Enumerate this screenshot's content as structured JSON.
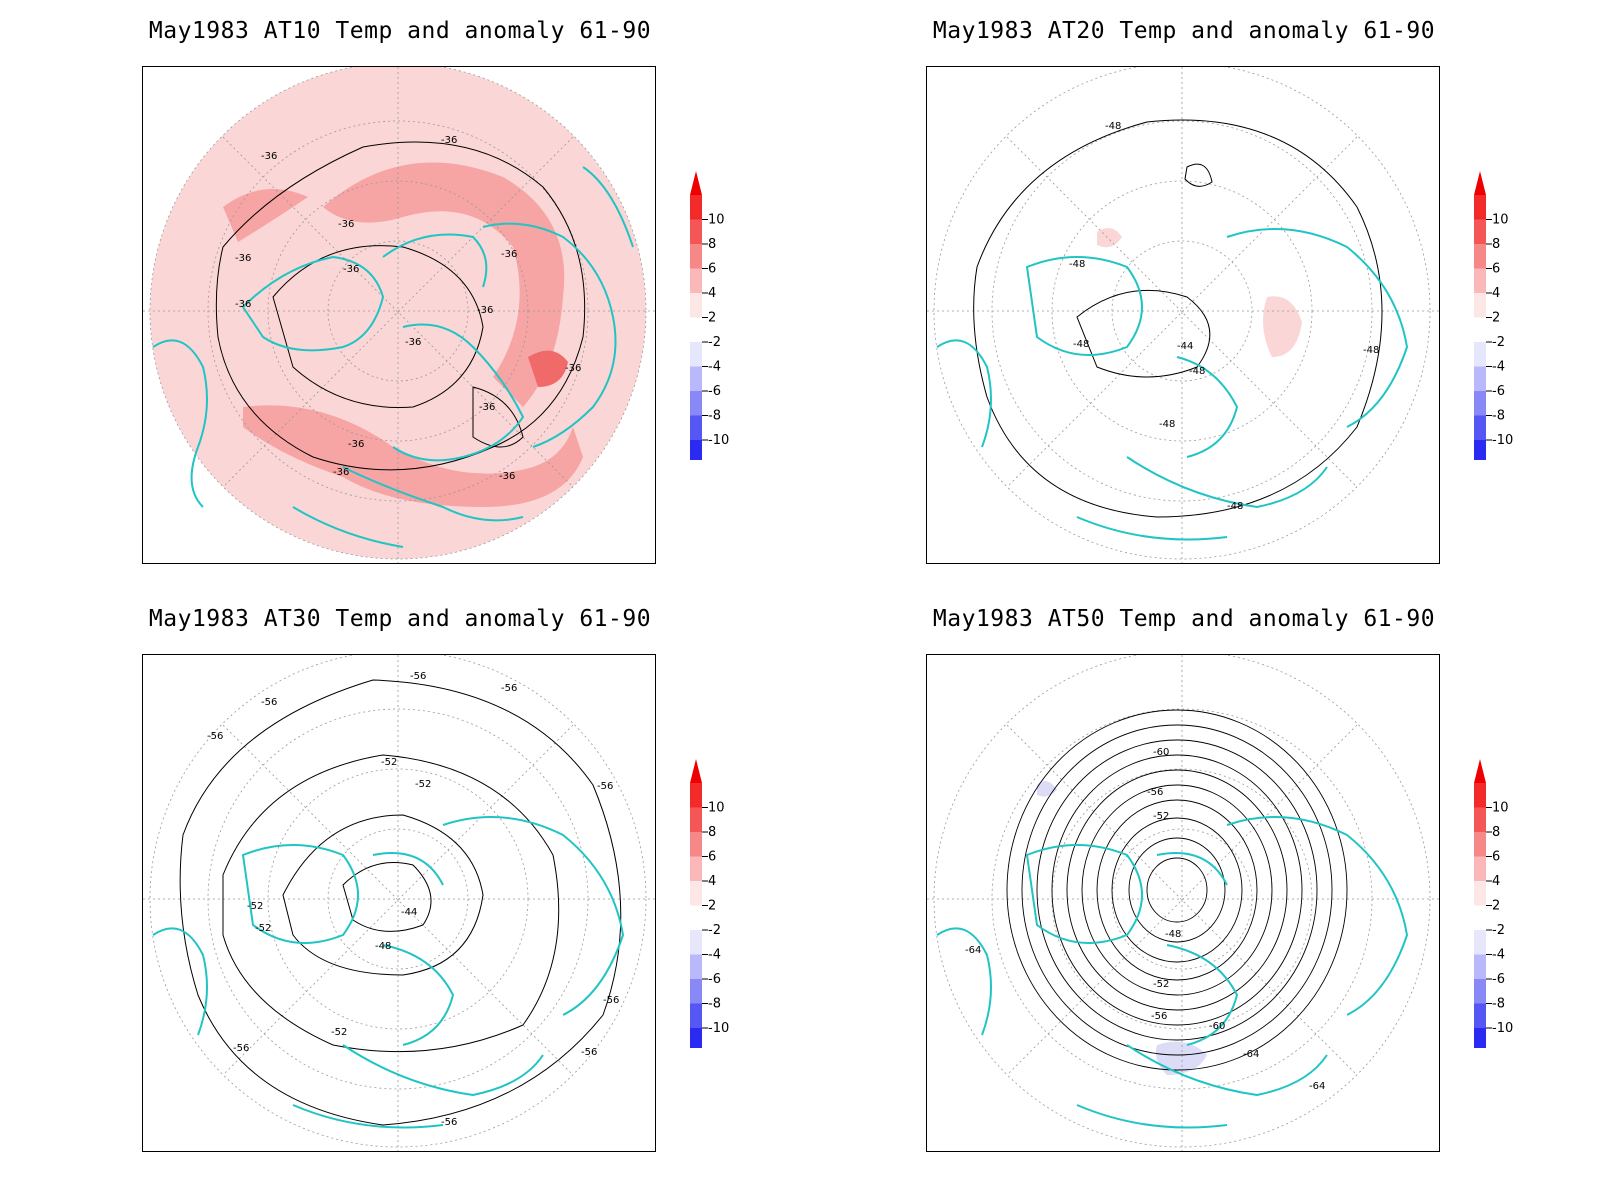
{
  "panels": [
    {
      "title": "May1983 AT10 Temp and anomaly 61-90",
      "contour_labels": [
        "-36",
        "-36",
        "-36",
        "-36",
        "-36",
        "-36",
        "-36",
        "-36",
        "-36",
        "-36",
        "-36",
        "-36",
        "-36",
        "-36"
      ]
    },
    {
      "title": "May1983 AT20 Temp and anomaly 61-90",
      "contour_labels": [
        "-48",
        "-48",
        "-48",
        "-44",
        "-48",
        "-48",
        "-48",
        "-48"
      ]
    },
    {
      "title": "May1983 AT30 Temp and anomaly 61-90",
      "contour_labels": [
        "-56",
        "-56",
        "-56",
        "-56",
        "-52",
        "-52",
        "-56",
        "-52",
        "-52",
        "-44",
        "-48",
        "-52",
        "-56",
        "-56",
        "-56",
        "-56"
      ]
    },
    {
      "title": "May1983 AT50 Temp and anomaly 61-90",
      "contour_labels": [
        "-60",
        "-56",
        "-52",
        "-48",
        "-52",
        "-56",
        "-60",
        "-64",
        "-64",
        "-64"
      ]
    }
  ],
  "colorbar": {
    "labels": [
      "10",
      "8",
      "6",
      "4",
      "2",
      "-2",
      "-4",
      "-6",
      "-8",
      "-10"
    ],
    "colors": [
      "#f22a2a",
      "#f55656",
      "#f78888",
      "#fab8b8",
      "#fde6e6",
      "#ffffff",
      "#e6e6fd",
      "#b8b8fa",
      "#8888f7",
      "#5656f5",
      "#2a2af2"
    ],
    "arrow_top": "#ee0000",
    "arrow_bottom": "#0000ee"
  },
  "colors": {
    "coastline": "#21c4c4",
    "contour": "#000000",
    "grid": "#999999",
    "anomaly_pos_weak": "#fbd6d6",
    "anomaly_pos_mid": "#f6a4a4",
    "anomaly_pos_strong": "#f06a6a",
    "anomaly_neg_weak": "#dcdcf7"
  }
}
